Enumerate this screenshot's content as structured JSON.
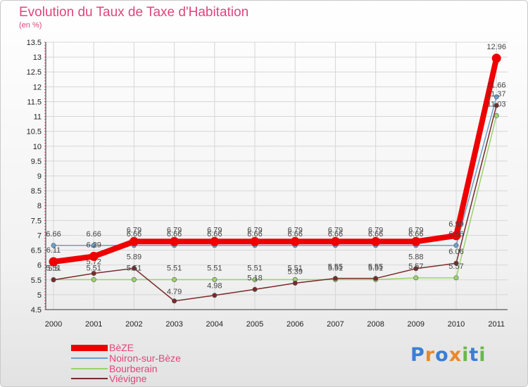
{
  "chart_data": {
    "type": "line",
    "title": "Evolution du Taux de Taxe d'Habitation",
    "subtitle": "(en %)",
    "ylim": [
      4.5,
      13.5
    ],
    "y_ticks": [
      "4.5",
      "5",
      "5.5",
      "6",
      "6.5",
      "7",
      "7.5",
      "8",
      "8.5",
      "9",
      "9.5",
      "10",
      "10.5",
      "11",
      "11.5",
      "12",
      "12.5",
      "13",
      "13.5"
    ],
    "x": [
      "2000",
      "2001",
      "2002",
      "2003",
      "2004",
      "2005",
      "2006",
      "2007",
      "2008",
      "2009",
      "2010",
      "2011"
    ],
    "series": [
      {
        "name": "BèZE",
        "color": "#ee0000",
        "values": [
          6.11,
          6.29,
          6.79,
          6.79,
          6.79,
          6.79,
          6.79,
          6.79,
          6.79,
          6.79,
          6.99,
          12.96
        ],
        "labels": [
          "6.11",
          "6.29",
          "6.79",
          "6.79",
          "6.79",
          "6.79",
          "6.79",
          "6.79",
          "6.79",
          "6.79",
          "6.99",
          "12.96"
        ]
      },
      {
        "name": "Noiron-sur-Bèze",
        "color": "#6aa0cf",
        "values": [
          6.66,
          6.66,
          6.66,
          6.66,
          6.66,
          6.66,
          6.66,
          6.66,
          6.66,
          6.66,
          6.66,
          11.66
        ],
        "labels": [
          "6.66",
          "6.66",
          "6.66",
          "6.66",
          "6.66",
          "6.66",
          "6.66",
          "6.66",
          "6.66",
          "6.66",
          "6.66",
          "11.66"
        ]
      },
      {
        "name": "Bourberain",
        "color": "#99d46a",
        "values": [
          5.51,
          5.51,
          5.51,
          5.51,
          5.51,
          5.51,
          5.51,
          5.51,
          5.51,
          5.57,
          5.57,
          11.03
        ],
        "labels": [
          "5.51",
          "5.51",
          "5.51",
          "5.51",
          "5.51",
          "5.51",
          "5.51",
          "5.51",
          "5.51",
          "5.57",
          "5.57",
          "11.03"
        ]
      },
      {
        "name": "Viévigne",
        "color": "#7a2a2a",
        "values": [
          5.5,
          5.72,
          5.89,
          4.79,
          4.98,
          5.18,
          5.39,
          5.55,
          5.55,
          5.88,
          6.06,
          11.37
        ],
        "labels": [
          "5.5",
          "5.72",
          "5.89",
          "4.79",
          "4.98",
          "5.18",
          "5.39",
          "5.55",
          "5.55",
          "5.88",
          "6.06",
          "11.37"
        ]
      }
    ]
  },
  "legend": {
    "items": [
      {
        "label": "BèZE",
        "color": "#ee0000"
      },
      {
        "label": "Noiron-sur-Bèze",
        "color": "#6aa0cf"
      },
      {
        "label": "Bourberain",
        "color": "#99d46a"
      },
      {
        "label": "Viévigne",
        "color": "#7a2a2a"
      }
    ]
  },
  "logo": {
    "text": "Proxiti",
    "letters": [
      "P",
      "r",
      "o",
      "x",
      "i",
      "t",
      "i"
    ],
    "colors": [
      "#3a7fd5",
      "#e8892b",
      "#3a7fd5",
      "#e8892b",
      "#6ab84a",
      "#3a7fd5",
      "#6ab84a"
    ]
  }
}
